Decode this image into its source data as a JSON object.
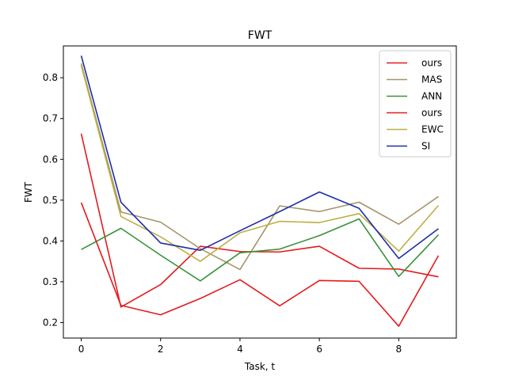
{
  "chart_data": {
    "type": "line",
    "title": "FWT",
    "xlabel": "Task, t",
    "ylabel": "FWT",
    "xlim": [
      -0.45,
      9.45
    ],
    "ylim": [
      0.162,
      0.878
    ],
    "xticks": [
      0,
      2,
      4,
      6,
      8
    ],
    "yticks": [
      0.2,
      0.3,
      0.4,
      0.5,
      0.6,
      0.7,
      0.8
    ],
    "ytick_labels": [
      "0.2",
      "0.3",
      "0.4",
      "0.5",
      "0.6",
      "0.7",
      "0.8"
    ],
    "grid": false,
    "legend_position": "top-right",
    "x": [
      0,
      1,
      2,
      3,
      4,
      5,
      6,
      7,
      8,
      9
    ],
    "series": [
      {
        "name": "ours",
        "color": "#e41a1c",
        "values": [
          0.663,
          0.238,
          0.293,
          0.387,
          0.374,
          0.373,
          0.387,
          0.333,
          0.331,
          0.312
        ]
      },
      {
        "name": "MAS",
        "color": "#a6946a",
        "values": [
          0.835,
          0.471,
          0.446,
          0.381,
          0.33,
          0.486,
          0.472,
          0.495,
          0.441,
          0.509
        ]
      },
      {
        "name": "ANN",
        "color": "#3a923a",
        "values": [
          0.379,
          0.431,
          0.365,
          0.302,
          0.371,
          0.38,
          0.413,
          0.454,
          0.313,
          0.415
        ]
      },
      {
        "name": "ours",
        "color": "#e41a1c",
        "values": [
          0.494,
          0.242,
          0.219,
          0.259,
          0.305,
          0.241,
          0.303,
          0.301,
          0.191,
          0.364
        ]
      },
      {
        "name": "EWC",
        "color": "#bcb042",
        "values": [
          0.83,
          0.46,
          0.41,
          0.35,
          0.42,
          0.448,
          0.445,
          0.467,
          0.375,
          0.487
        ]
      },
      {
        "name": "SI",
        "color": "#1f2ea6",
        "values": [
          0.854,
          0.495,
          0.395,
          0.377,
          0.425,
          0.472,
          0.52,
          0.48,
          0.357,
          0.43
        ]
      }
    ]
  }
}
